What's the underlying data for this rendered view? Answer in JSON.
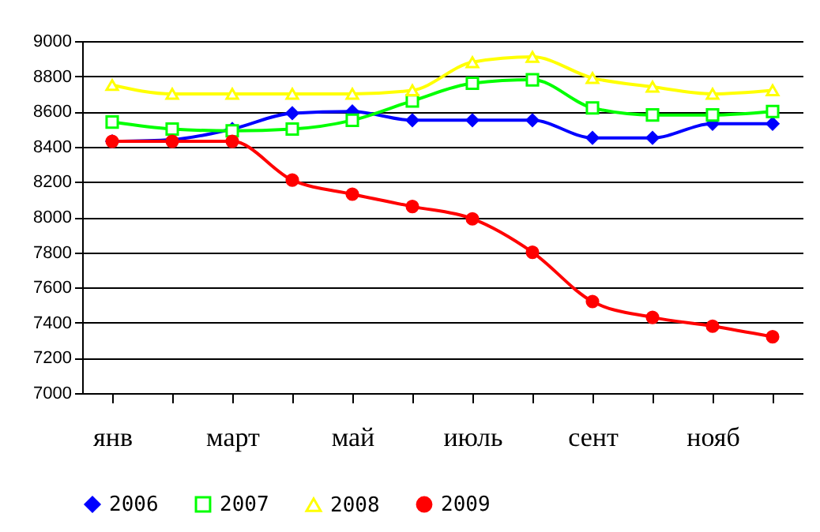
{
  "chart_data": {
    "type": "line",
    "categories": [
      "янв",
      null,
      "март",
      null,
      "май",
      null,
      "июль",
      null,
      "сент",
      null,
      "нояб",
      null
    ],
    "series": [
      {
        "name": "2006",
        "color": "#0000ff",
        "marker": "diamond",
        "values": [
          8430,
          8440,
          8500,
          8590,
          8600,
          8550,
          8550,
          8550,
          8450,
          8450,
          8530,
          8530
        ]
      },
      {
        "name": "2007",
        "color": "#00ff00",
        "marker": "square",
        "values": [
          8540,
          8500,
          8490,
          8500,
          8550,
          8660,
          8760,
          8780,
          8620,
          8580,
          8580,
          8600
        ]
      },
      {
        "name": "2008",
        "color": "#ffff00",
        "marker": "triangle",
        "values": [
          8750,
          8700,
          8700,
          8700,
          8700,
          8720,
          8880,
          8910,
          8790,
          8740,
          8700,
          8720
        ]
      },
      {
        "name": "2009",
        "color": "#ff0000",
        "marker": "circle",
        "values": [
          8430,
          8430,
          8430,
          8210,
          8130,
          8060,
          7990,
          7800,
          7520,
          7430,
          7380,
          7320
        ]
      }
    ],
    "ylim": [
      7000,
      9000
    ],
    "yticks": [
      7000,
      7200,
      7400,
      7600,
      7800,
      8000,
      8200,
      8400,
      8600,
      8800,
      9000
    ],
    "grid": "y",
    "legend": "bottom"
  }
}
